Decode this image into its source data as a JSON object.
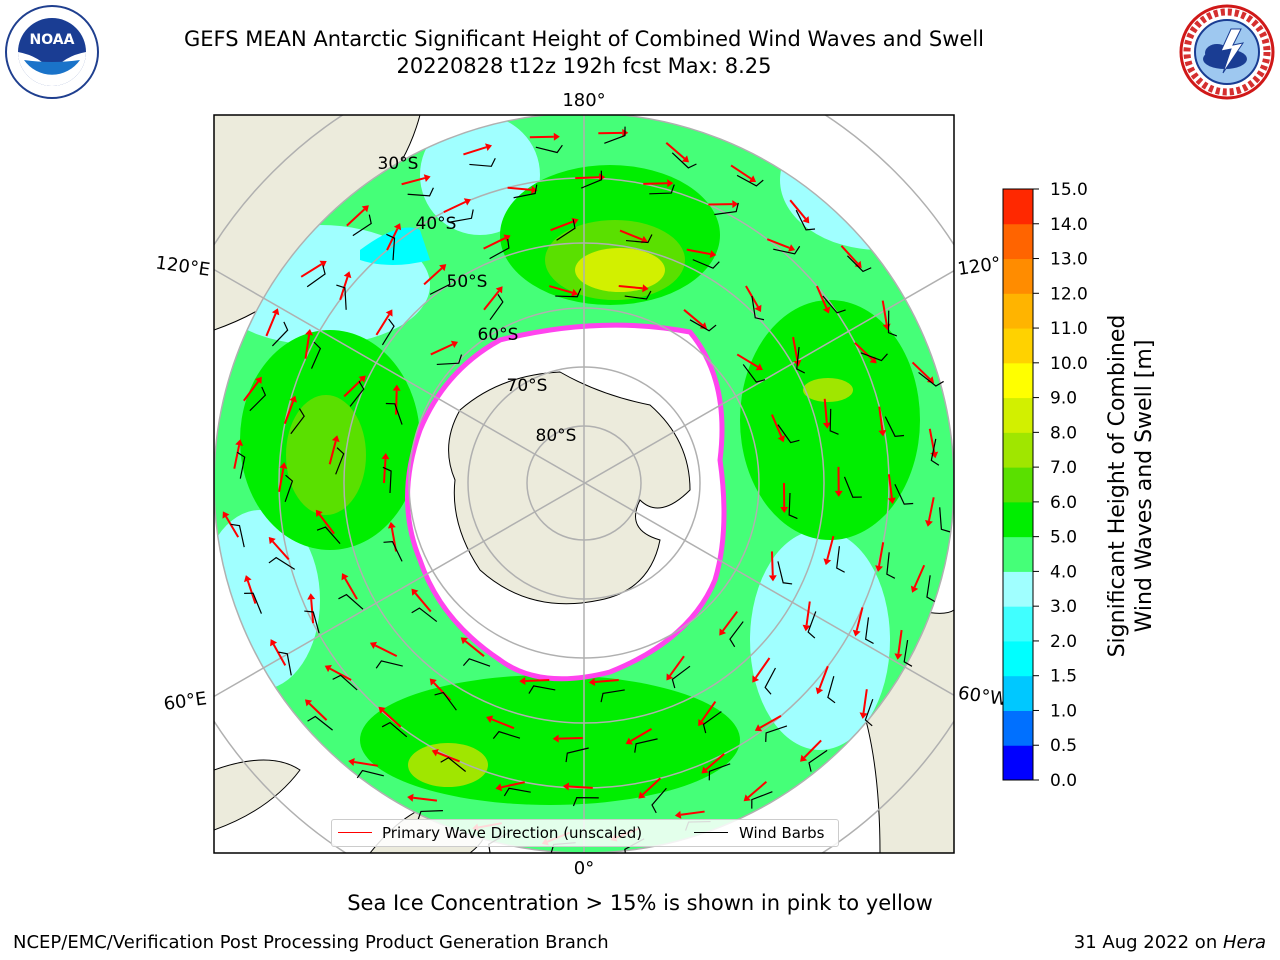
{
  "header": {
    "title_line1": "GEFS MEAN Antarctic Significant Height of Combined Wind Waves and Swell",
    "title_line2": "20220828 t12z 192h fcst   Max: 8.25"
  },
  "logos": {
    "noaa": {
      "text": "NOAA",
      "ring_text": "NATIONAL OCEANIC AND ATMOSPHERIC ADMINISTRATION · U.S. DEPARTMENT OF COMMERCE"
    },
    "nws": {
      "ring_text": "NATIONAL WEATHER SERVICE"
    }
  },
  "map": {
    "projection": "south-polar-stereographic",
    "lon_labels": {
      "top": "180°",
      "left_upper": "120°E",
      "right_upper": "120°",
      "left_lower": "60°E",
      "right_lower": "60°W",
      "bottom": "0°"
    },
    "lat_labels": [
      "30°S",
      "40°S",
      "50°S",
      "60°S",
      "70°S",
      "80°S"
    ]
  },
  "legend": {
    "primary_wave": "Primary Wave Direction (unscaled)",
    "wind_barbs": "Wind Barbs",
    "primary_wave_color": "#ff0000",
    "wind_barb_color": "#000000"
  },
  "colorbar": {
    "label_line1": "Significant Height of Combined",
    "label_line2": "Wind Waves and Swell [m]",
    "ticks": [
      "0.0",
      "0.5",
      "1.0",
      "1.5",
      "2.0",
      "3.0",
      "4.0",
      "5.0",
      "6.0",
      "7.0",
      "8.0",
      "9.0",
      "10.0",
      "11.0",
      "12.0",
      "13.0",
      "14.0",
      "15.0"
    ],
    "colors": [
      "#0000ff",
      "#0070ff",
      "#00c8ff",
      "#00ffff",
      "#40ffff",
      "#a0ffff",
      "#45ff78",
      "#00ee00",
      "#5ae000",
      "#a0e600",
      "#d2f000",
      "#ffff00",
      "#ffd200",
      "#ffb400",
      "#ff8c00",
      "#ff6400",
      "#ff2800"
    ]
  },
  "caption": "Sea Ice Concentration > 15% is shown in pink to yellow",
  "footer": {
    "left": "NCEP/EMC/Verification Post Processing Product Generation Branch",
    "right_date": "31 Aug 2022 on ",
    "right_machine": "Hera"
  }
}
